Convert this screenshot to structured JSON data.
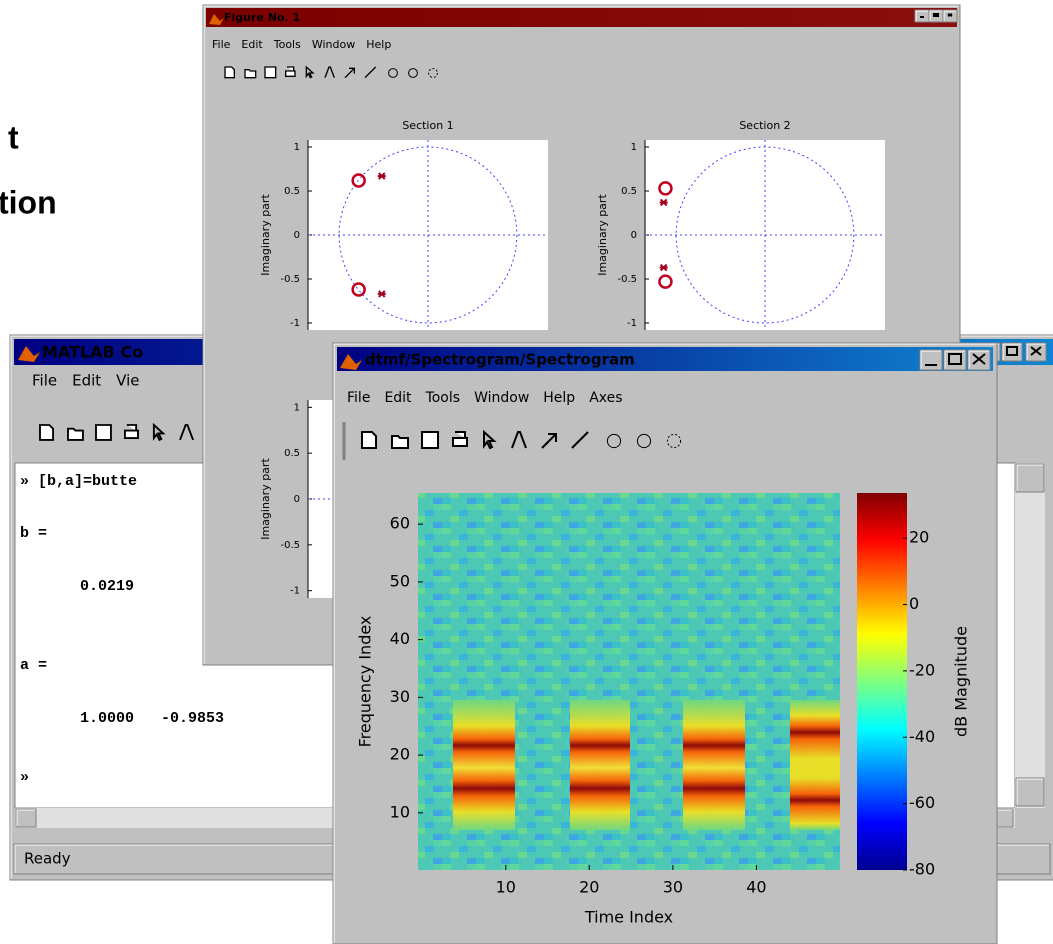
{
  "background_text": [
    "t",
    "tion"
  ],
  "command_window": {
    "title": "MATLAB Co",
    "menu": [
      "File",
      "Edit",
      "Vie"
    ],
    "lines": [
      "» [b,a]=butte",
      "b =",
      "0.0219",
      "a =",
      "1.0000   -0.9853",
      "»"
    ],
    "status": "Ready"
  },
  "figure_1": {
    "title": "Figure No. 1",
    "menu": [
      "File",
      "Edit",
      "Tools",
      "Window",
      "Help"
    ],
    "plots": [
      {
        "type": "scatter",
        "title": "Section 1",
        "ylabel": "Imaginary part",
        "xlim": [
          -1.35,
          1.35
        ],
        "ylim": [
          -1.08,
          1.08
        ],
        "yticks": [
          1,
          0.5,
          0,
          -0.5,
          -1
        ],
        "zeros": [
          [
            -0.78,
            0.62
          ],
          [
            -0.78,
            -0.62
          ]
        ],
        "poles": [
          [
            -0.52,
            0.67
          ],
          [
            -0.52,
            -0.67
          ]
        ]
      },
      {
        "type": "scatter",
        "title": "Section 2",
        "ylabel": "Imaginary part",
        "xlim": [
          -1.35,
          1.35
        ],
        "ylim": [
          -1.08,
          1.08
        ],
        "yticks": [
          1,
          0.5,
          0,
          -0.5,
          -1
        ],
        "zeros": [
          [
            -1.12,
            0.53
          ],
          [
            -1.12,
            -0.53
          ]
        ],
        "poles": [
          [
            -1.14,
            0.37
          ],
          [
            -1.14,
            -0.37
          ]
        ]
      },
      {
        "type": "scatter",
        "ylabel": "Imaginary part",
        "ylim": [
          -1.08,
          1.08
        ],
        "yticks": [
          1,
          0.5,
          0,
          -0.5,
          -1
        ]
      }
    ]
  },
  "spectrogram_window": {
    "title": "dtmf/Spectrogram/Spectrogram",
    "menu": [
      "File",
      "Edit",
      "Tools",
      "Window",
      "Help",
      "Axes"
    ],
    "chart_data": {
      "type": "heatmap",
      "xlabel": "Time Index",
      "ylabel": "Frequency Index",
      "xlim": [
        -0.5,
        50
      ],
      "ylim": [
        0.1,
        65.4
      ],
      "xticks": [
        10,
        20,
        30,
        40
      ],
      "yticks": [
        10,
        20,
        30,
        40,
        50,
        60
      ],
      "colorbar": {
        "label": "dB Magnitude",
        "lim": [
          -80,
          33.6
        ],
        "ticks": [
          20,
          0,
          -20,
          -40,
          -60,
          -80
        ]
      }
    }
  }
}
